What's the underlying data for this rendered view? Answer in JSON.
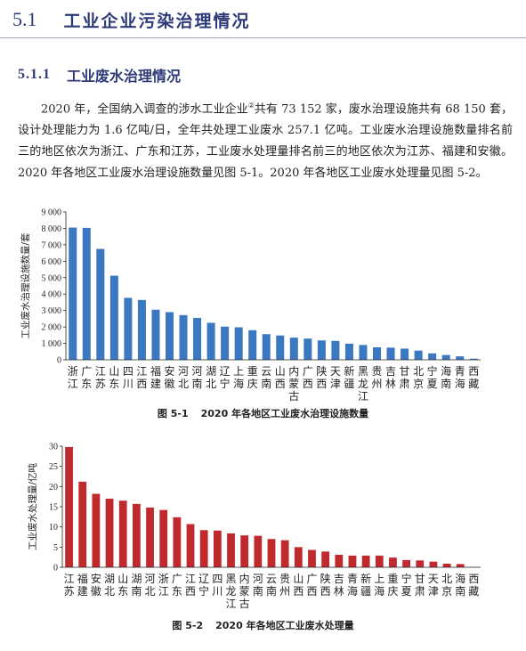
{
  "section": {
    "number": "5.1",
    "title": "工业企业污染治理情况"
  },
  "subsection": {
    "number": "5.1.1",
    "title": "工业废水治理情况"
  },
  "paragraph": {
    "part1": "2020 年，全国纳入调查的涉水工业企业",
    "footnote": "②",
    "part2": "共有 73 152 家，废水治理设施共有 68 150 套，设计处理能力为 1.6 亿吨/日，全年共处理工业废水 257.1 亿吨。工业废水治理设施数量排名前三的地区依次为浙江、广东和江苏，工业废水处理量排名前三的地区依次为江苏、福建和安徽。2020 年各地区工业废水治理设施数量见图 5-1。2020 年各地区工业废水处理量见图 5-2。"
  },
  "colors": {
    "heading": "#2d3a78",
    "bar1": "#3a78c2",
    "bar2": "#c0292d"
  },
  "chart_data": [
    {
      "type": "bar",
      "caption_label": "图 5-1",
      "caption_title": "2020 年各地区工业废水治理设施数量",
      "ylabel": "工业废水治理设施数量/套",
      "ylim": [
        0,
        9000
      ],
      "yticks": [
        "0",
        "1 000",
        "2 000",
        "3 000",
        "4 000",
        "5 000",
        "6 000",
        "7 000",
        "8 000",
        "9 000"
      ],
      "categories": [
        "浙江",
        "广东",
        "江苏",
        "山东",
        "四川",
        "江西",
        "福建",
        "安徽",
        "河北",
        "河南",
        "湖北",
        "辽宁",
        "上海",
        "重庆",
        "云南",
        "山西",
        "内蒙古",
        "广西",
        "陕西",
        "天津",
        "新疆",
        "黑龙江",
        "贵州",
        "吉林",
        "甘肃",
        "北京",
        "宁夏",
        "海南",
        "青海",
        "西藏"
      ],
      "values": [
        8050,
        8030,
        6750,
        5120,
        3770,
        3640,
        3050,
        2900,
        2720,
        2550,
        2250,
        2020,
        1980,
        1800,
        1560,
        1480,
        1350,
        1290,
        1180,
        1150,
        980,
        900,
        760,
        740,
        680,
        560,
        390,
        290,
        210,
        70
      ]
    },
    {
      "type": "bar",
      "caption_label": "图 5-2",
      "caption_title": "2020 年各地区工业废水处理量",
      "ylabel": "工业废水处理量/亿吨",
      "ylim": [
        0,
        30
      ],
      "yticks": [
        "0",
        "5",
        "10",
        "15",
        "20",
        "25",
        "30"
      ],
      "categories": [
        "江苏",
        "福建",
        "安徽",
        "湖北",
        "山东",
        "湖南",
        "河北",
        "浙江",
        "广东",
        "江西",
        "辽宁",
        "四川",
        "黑龙江",
        "内蒙古",
        "河南",
        "云南",
        "贵州",
        "山西",
        "广西",
        "陕西",
        "吉林",
        "青海",
        "新疆",
        "上海",
        "重庆",
        "宁夏",
        "甘肃",
        "天津",
        "北京",
        "海南",
        "西藏"
      ],
      "values": [
        29.8,
        21.2,
        18.2,
        17.0,
        16.5,
        15.7,
        14.8,
        14.2,
        12.4,
        10.7,
        9.2,
        9.1,
        8.4,
        7.9,
        7.8,
        7.0,
        6.7,
        5.0,
        4.3,
        3.9,
        3.1,
        2.9,
        2.9,
        2.9,
        2.4,
        1.8,
        1.7,
        1.4,
        0.9,
        0.8,
        0.05
      ]
    }
  ]
}
